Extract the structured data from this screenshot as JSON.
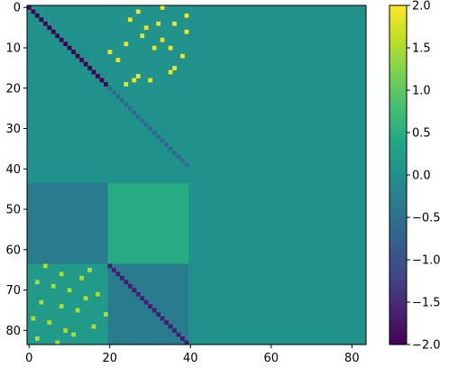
{
  "chart_data": {
    "type": "heatmap",
    "title": "",
    "xlabel": "",
    "ylabel": "",
    "shape": [
      84,
      84
    ],
    "xlim": [
      0,
      84
    ],
    "ylim": [
      84,
      0
    ],
    "xticks": [
      0,
      20,
      40,
      60,
      80
    ],
    "yticks": [
      0,
      10,
      20,
      30,
      40,
      50,
      60,
      70,
      80
    ],
    "colormap": "viridis",
    "vmin": -2.0,
    "vmax": 2.0,
    "colorbar_ticks": [
      "2.0",
      "1.5",
      "1.0",
      "0.5",
      "0.0",
      "−0.5",
      "−1.0",
      "−1.5",
      "−2.0"
    ],
    "colorbar_values": [
      2.0,
      1.5,
      1.0,
      0.5,
      0.0,
      -0.5,
      -1.0,
      -1.5,
      -2.0
    ],
    "background_value": 0.0,
    "blocks": [
      {
        "rows": [
          44,
          64
        ],
        "cols": [
          0,
          20
        ],
        "value": -0.35
      },
      {
        "rows": [
          44,
          64
        ],
        "cols": [
          20,
          40
        ],
        "value": 0.45
      },
      {
        "rows": [
          0,
          20
        ],
        "cols": [
          20,
          40
        ],
        "value": 0.02
      },
      {
        "rows": [
          64,
          84
        ],
        "cols": [
          0,
          20
        ],
        "value": 0.15
      },
      {
        "rows": [
          64,
          84
        ],
        "cols": [
          20,
          40
        ],
        "value": -0.35
      }
    ],
    "diagonals": [
      {
        "name": "",
        "start": [
          0,
          0
        ],
        "length": 20,
        "value": -2.0
      },
      {
        "name": "",
        "start": [
          20,
          20
        ],
        "length": 20,
        "value": -0.6
      },
      {
        "name": "",
        "start": [
          64,
          20
        ],
        "length": 20,
        "value": -1.7
      }
    ],
    "spikes": [
      {
        "value": 1.9,
        "cells": [
          [
            0,
            33
          ],
          [
            1,
            27
          ],
          [
            2,
            39
          ],
          [
            3,
            25
          ],
          [
            4,
            32
          ],
          [
            4,
            36
          ],
          [
            5,
            29
          ],
          [
            6,
            39
          ],
          [
            7,
            28
          ],
          [
            8,
            33
          ],
          [
            9,
            24
          ],
          [
            10,
            31
          ],
          [
            10,
            35
          ],
          [
            11,
            20
          ],
          [
            12,
            38
          ],
          [
            13,
            22
          ],
          [
            15,
            36
          ],
          [
            16,
            35
          ],
          [
            17,
            27
          ],
          [
            18,
            26
          ],
          [
            18,
            30
          ],
          [
            19,
            24
          ]
        ]
      },
      {
        "value": 1.5,
        "cells": [
          [
            64,
            4
          ],
          [
            65,
            15
          ],
          [
            66,
            8
          ],
          [
            67,
            13
          ],
          [
            68,
            2
          ],
          [
            69,
            6
          ],
          [
            70,
            10
          ],
          [
            71,
            17
          ],
          [
            72,
            14
          ],
          [
            73,
            3
          ],
          [
            74,
            8
          ],
          [
            75,
            12
          ],
          [
            76,
            19
          ],
          [
            77,
            1
          ],
          [
            78,
            5
          ],
          [
            79,
            16
          ],
          [
            80,
            9
          ],
          [
            81,
            11
          ],
          [
            82,
            2
          ],
          [
            83,
            7
          ]
        ]
      }
    ]
  }
}
